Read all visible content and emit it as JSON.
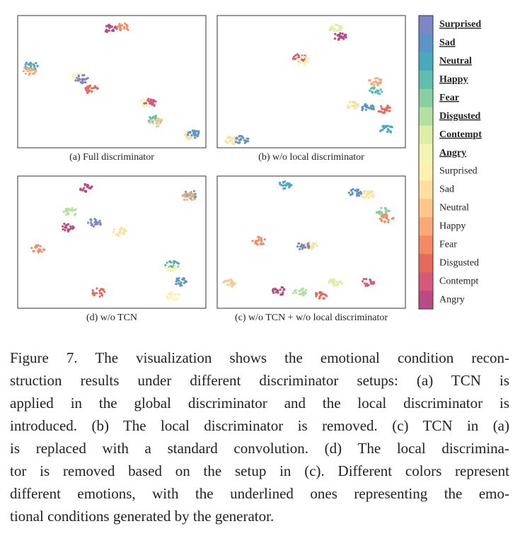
{
  "legend": [
    {
      "label": "Surprised",
      "underlined": true,
      "color": "#7e87c5"
    },
    {
      "label": "Sad",
      "underlined": true,
      "color": "#5d94c8"
    },
    {
      "label": "Neutral",
      "underlined": true,
      "color": "#4aa8c0"
    },
    {
      "label": "Happy",
      "underlined": true,
      "color": "#5fbfae"
    },
    {
      "label": "Fear",
      "underlined": true,
      "color": "#88d0a4"
    },
    {
      "label": "Disgusted",
      "underlined": true,
      "color": "#b4e0a3"
    },
    {
      "label": "Contempt",
      "underlined": true,
      "color": "#dcefa5"
    },
    {
      "label": "Angry",
      "underlined": true,
      "color": "#f3f6b2"
    },
    {
      "label": "Surprised",
      "underlined": false,
      "color": "#fdf1b0"
    },
    {
      "label": "Sad",
      "underlined": false,
      "color": "#fde0a0"
    },
    {
      "label": "Neutral",
      "underlined": false,
      "color": "#fcc68d"
    },
    {
      "label": "Happy",
      "underlined": false,
      "color": "#f9a877"
    },
    {
      "label": "Fear",
      "underlined": false,
      "color": "#f38a64"
    },
    {
      "label": "Disgusted",
      "underlined": false,
      "color": "#e36a5d"
    },
    {
      "label": "Contempt",
      "underlined": false,
      "color": "#d7587a"
    },
    {
      "label": "Angry",
      "underlined": false,
      "color": "#b84b84"
    }
  ],
  "panels": [
    {
      "caption": "(a) Full discriminator",
      "clusters": [
        [
          49,
          10,
          15
        ],
        [
          56,
          9,
          12
        ],
        [
          7,
          38,
          2
        ],
        [
          6,
          42,
          11
        ],
        [
          32,
          47,
          8
        ],
        [
          34,
          48,
          0
        ],
        [
          39,
          56,
          13
        ],
        [
          68,
          66,
          8
        ],
        [
          70,
          66,
          14
        ],
        [
          73,
          79,
          3
        ],
        [
          74,
          81,
          10
        ],
        [
          92,
          91,
          9
        ],
        [
          94,
          90,
          1
        ]
      ]
    },
    {
      "caption": "(b) w/o local discriminator",
      "clusters": [
        [
          63,
          10,
          6
        ],
        [
          65,
          16,
          15
        ],
        [
          44,
          32,
          14
        ],
        [
          46,
          34,
          8
        ],
        [
          84,
          50,
          11
        ],
        [
          84,
          57,
          3
        ],
        [
          72,
          68,
          9
        ],
        [
          80,
          70,
          1
        ],
        [
          89,
          71,
          13
        ],
        [
          90,
          86,
          2
        ],
        [
          8,
          94,
          9
        ],
        [
          13,
          94,
          1
        ]
      ]
    },
    {
      "caption": "(d) w/o TCN",
      "clusters": [
        [
          36,
          9,
          15
        ],
        [
          92,
          14,
          2
        ],
        [
          91,
          16,
          11
        ],
        [
          28,
          27,
          5
        ],
        [
          26,
          39,
          15
        ],
        [
          41,
          35,
          0
        ],
        [
          54,
          42,
          9
        ],
        [
          11,
          55,
          12
        ],
        [
          82,
          67,
          2
        ],
        [
          81,
          69,
          8
        ],
        [
          87,
          80,
          1
        ],
        [
          83,
          91,
          8
        ],
        [
          43,
          88,
          13
        ]
      ]
    },
    {
      "caption": "(c) w/o TCN + w/o local discriminator",
      "clusters": [
        [
          36,
          7,
          2
        ],
        [
          73,
          13,
          1
        ],
        [
          80,
          14,
          9
        ],
        [
          88,
          27,
          4
        ],
        [
          90,
          32,
          12
        ],
        [
          22,
          49,
          12
        ],
        [
          50,
          53,
          9
        ],
        [
          46,
          53,
          0
        ],
        [
          7,
          81,
          10
        ],
        [
          33,
          87,
          15
        ],
        [
          44,
          88,
          5
        ],
        [
          55,
          90,
          13
        ],
        [
          63,
          80,
          6
        ],
        [
          80,
          80,
          14
        ]
      ]
    }
  ],
  "caption": {
    "lines": [
      "Figure 7.  The visualization shows the emotional condition recon-",
      "struction results under different discriminator setups: (a) TCN is",
      "applied in the global discriminator and the local discriminator is",
      "introduced. (b) The local discriminator is removed. (c) TCN in (a)",
      "is replaced with a standard convolution. (d) The local discrimina-",
      "tor is removed based on the setup in (c). Different colors represent",
      "different emotions, with the underlined ones representing the emo-",
      "tional conditions generated by the generator."
    ]
  }
}
